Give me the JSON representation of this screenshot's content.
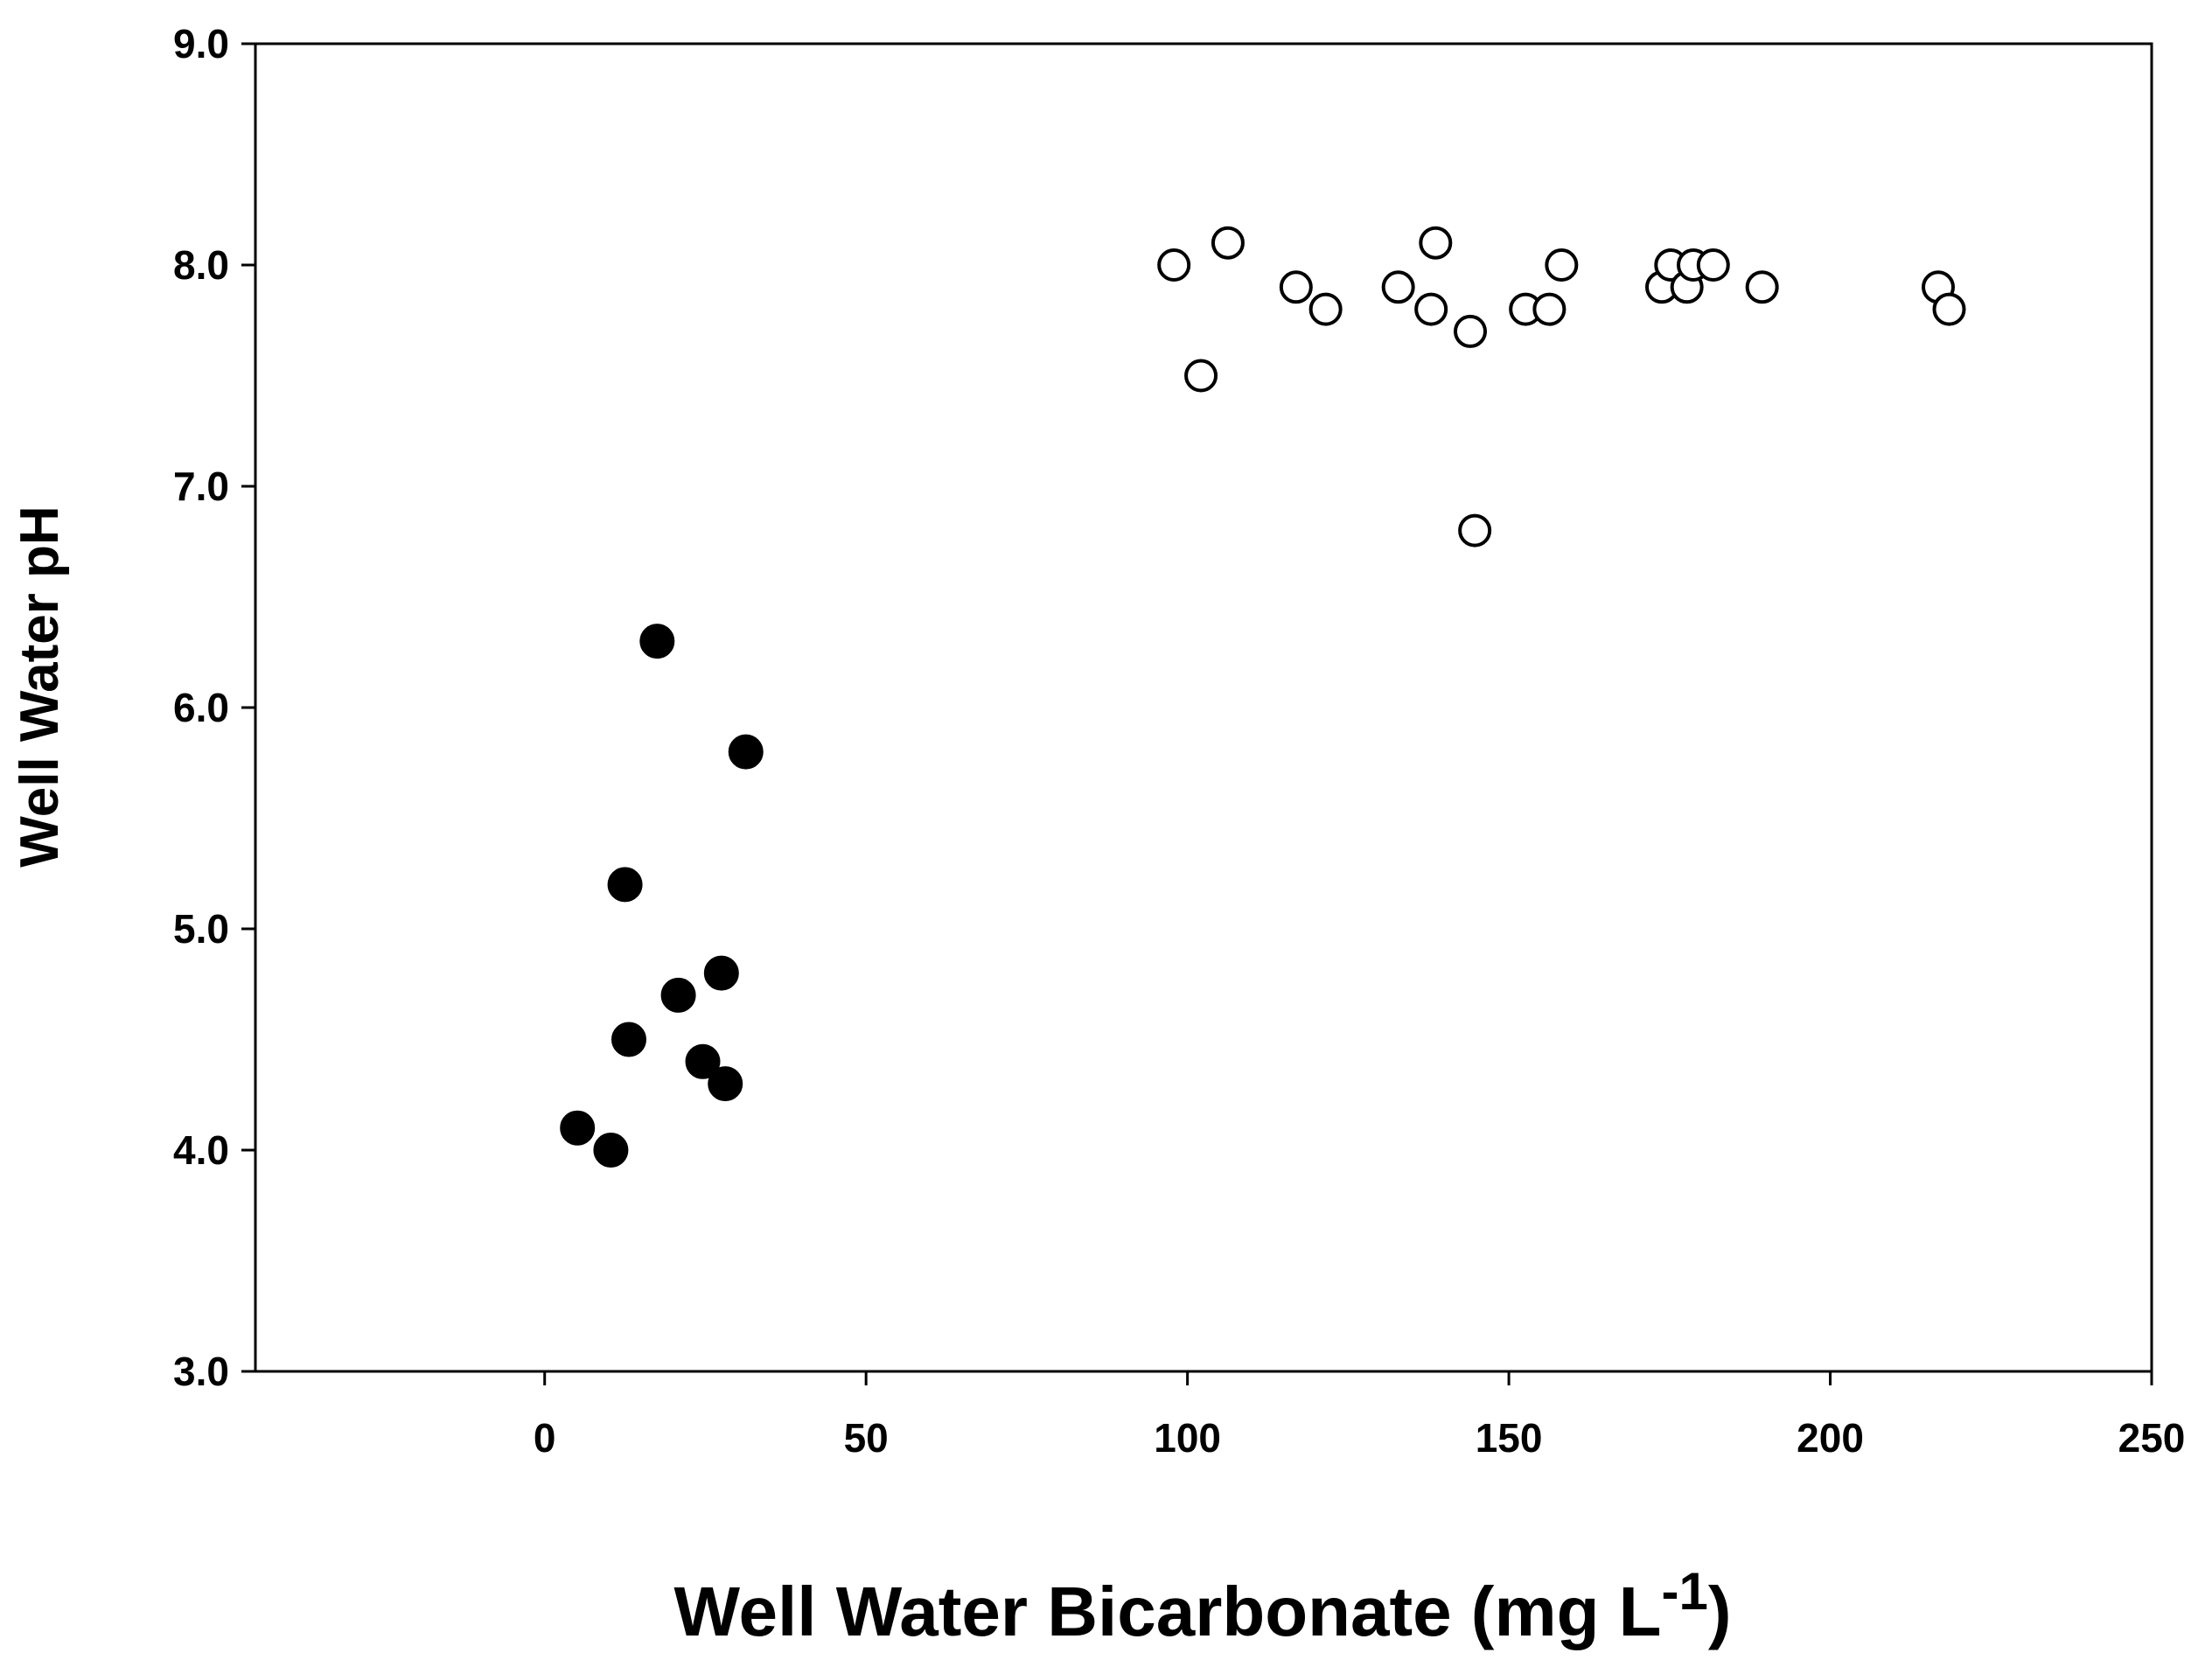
{
  "chart_data": {
    "type": "scatter",
    "title": "",
    "xlabel": "Well Water Bicarbonate (mg L",
    "xlabel_superscript": "-1",
    "xlabel_close": ")",
    "ylabel": "Well Water pH",
    "xlim": [
      -45,
      250
    ],
    "ylim": [
      3.0,
      9.0
    ],
    "xticks": [
      0,
      50,
      100,
      150,
      200,
      250
    ],
    "xtick_labels": [
      "0",
      "50",
      "100",
      "150",
      "200",
      "250"
    ],
    "yticks": [
      3.0,
      4.0,
      5.0,
      6.0,
      7.0,
      8.0,
      9.0
    ],
    "ytick_labels": [
      "3.0",
      "4.0",
      "5.0",
      "6.0",
      "7.0",
      "8.0",
      "9.0"
    ],
    "grid": false,
    "legend": null,
    "series": [
      {
        "name": "filled",
        "marker": "filled-circle",
        "color": "#000000",
        "points": [
          {
            "x": 17.5,
            "y": 6.3
          },
          {
            "x": 31.3,
            "y": 5.8
          },
          {
            "x": 12.5,
            "y": 5.2
          },
          {
            "x": 27.5,
            "y": 4.8
          },
          {
            "x": 20.8,
            "y": 4.7
          },
          {
            "x": 13.1,
            "y": 4.5
          },
          {
            "x": 24.6,
            "y": 4.4
          },
          {
            "x": 28.1,
            "y": 4.3
          },
          {
            "x": 5.1,
            "y": 4.1
          },
          {
            "x": 10.3,
            "y": 4.0
          }
        ]
      },
      {
        "name": "open",
        "marker": "open-circle",
        "color": "#000000",
        "points": [
          {
            "x": 97.9,
            "y": 8.0
          },
          {
            "x": 106.3,
            "y": 8.1
          },
          {
            "x": 102.1,
            "y": 7.5
          },
          {
            "x": 116.9,
            "y": 7.9
          },
          {
            "x": 121.5,
            "y": 7.8
          },
          {
            "x": 132.8,
            "y": 7.9
          },
          {
            "x": 138.6,
            "y": 8.1
          },
          {
            "x": 137.9,
            "y": 7.8
          },
          {
            "x": 144.0,
            "y": 7.7
          },
          {
            "x": 144.7,
            "y": 6.8
          },
          {
            "x": 152.6,
            "y": 7.8
          },
          {
            "x": 156.3,
            "y": 7.8
          },
          {
            "x": 158.2,
            "y": 8.0
          },
          {
            "x": 173.8,
            "y": 7.9
          },
          {
            "x": 175.2,
            "y": 8.0
          },
          {
            "x": 177.7,
            "y": 7.9
          },
          {
            "x": 178.7,
            "y": 8.0
          },
          {
            "x": 181.8,
            "y": 8.0
          },
          {
            "x": 189.4,
            "y": 7.9
          },
          {
            "x": 216.8,
            "y": 7.9
          },
          {
            "x": 218.5,
            "y": 7.8
          }
        ]
      }
    ]
  }
}
